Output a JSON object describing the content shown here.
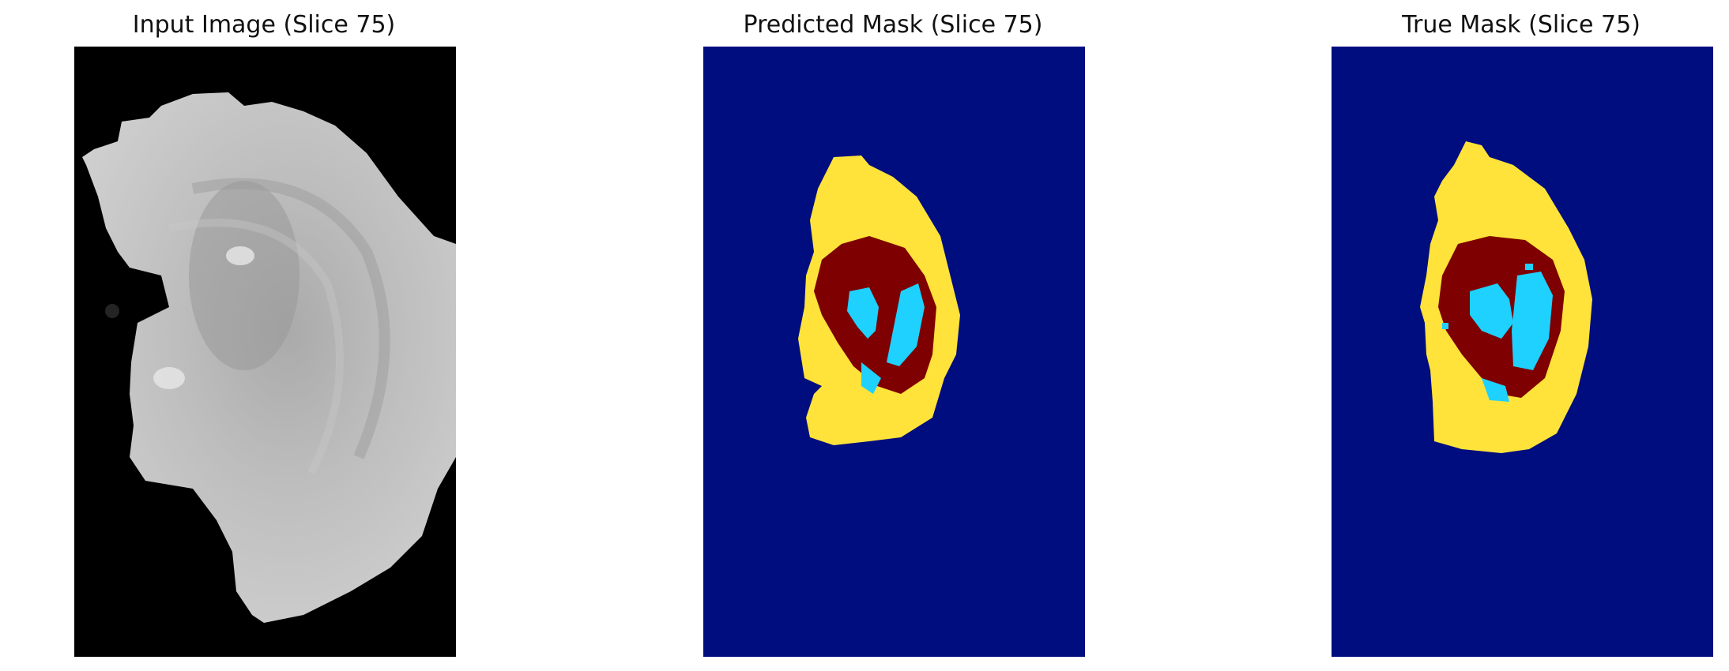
{
  "panels": [
    {
      "title": "Input Image (Slice 75)"
    },
    {
      "title": "Predicted Mask (Slice 75)"
    },
    {
      "title": "True Mask (Slice 75)"
    }
  ],
  "colors": {
    "background_dark": "#000000",
    "mask_background": "#000d7f",
    "edema_yellow": "#ffe33a",
    "core_red": "#7f0000",
    "enhancing_cyan": "#1ed1ff"
  }
}
